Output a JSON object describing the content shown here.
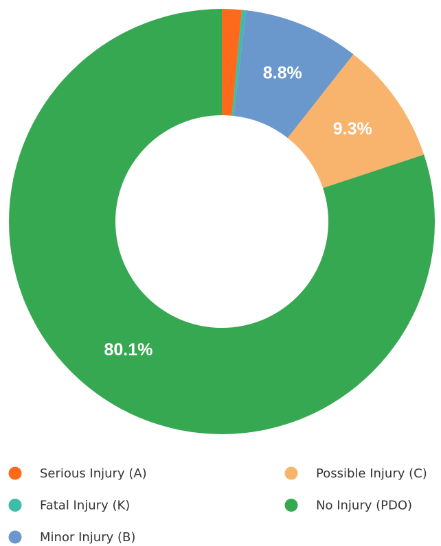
{
  "chart_data": {
    "type": "donut",
    "categories": [
      "Serious Injury (A)",
      "Fatal Injury (K)",
      "Minor Injury (B)",
      "Possible Injury (C)",
      "No Injury (PDO)"
    ],
    "values": [
      1.5,
      0.3,
      8.8,
      9.3,
      80.1
    ],
    "value_labels": [
      null,
      null,
      "8.8%",
      "9.3%",
      "80.1%"
    ],
    "colors": [
      "#fe6a1b",
      "#3dbda8",
      "#6a98cc",
      "#f8b36c",
      "#37a852"
    ],
    "legend": "bottom"
  }
}
